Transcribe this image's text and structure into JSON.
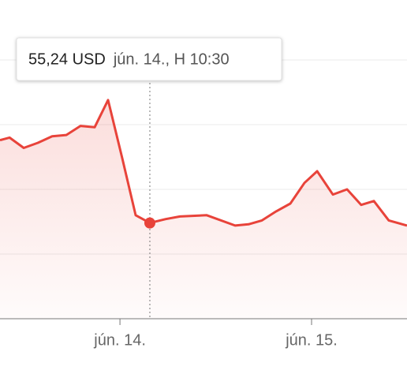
{
  "chart_data": {
    "type": "area-line",
    "color": "#e8433a",
    "x": [
      -0.626,
      -0.576,
      -0.502,
      -0.428,
      -0.354,
      -0.28,
      -0.206,
      -0.132,
      -0.062,
      0.012,
      0.082,
      0.156,
      0.239,
      0.313,
      0.453,
      0.601,
      0.671,
      0.741,
      0.815,
      0.889,
      0.963,
      1.029,
      1.111,
      1.185,
      1.259,
      1.325,
      1.403,
      1.498
    ],
    "values": [
      55.88,
      55.9,
      55.82,
      55.86,
      55.91,
      55.92,
      55.99,
      55.98,
      56.19,
      55.74,
      55.3,
      55.24,
      55.27,
      55.29,
      55.3,
      55.22,
      55.23,
      55.26,
      55.33,
      55.39,
      55.55,
      55.64,
      55.46,
      55.5,
      55.38,
      55.41,
      55.26,
      55.22
    ],
    "xlim": [
      -0.626,
      1.498
    ],
    "xticks": [
      {
        "value": 0,
        "label": "jún. 14."
      },
      {
        "value": 1,
        "label": "jún. 15."
      }
    ],
    "ylim": [
      54.5,
      57
    ],
    "yticks": [
      55,
      55.5,
      56,
      56.5
    ],
    "grid": true,
    "tooltip": {
      "index": 11,
      "value_label": "55,24 USD",
      "time": "jún. 14., H 10:30"
    }
  }
}
